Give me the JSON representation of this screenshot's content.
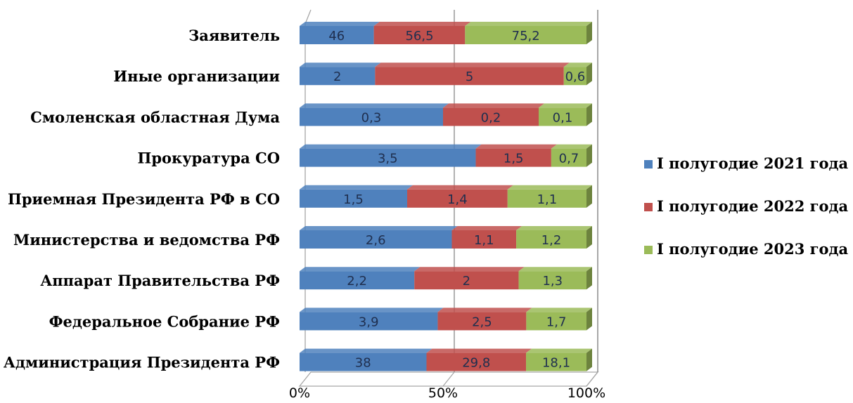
{
  "chart_data": {
    "type": "bar",
    "orientation": "horizontal",
    "stacked": "percent",
    "categories": [
      "Заявитель",
      "Иные организации",
      "Смоленская областная Дума",
      "Прокуратура СО",
      "Приемная Президента РФ в СО",
      "Министерства и ведомства РФ",
      "Аппарат Правительства РФ",
      "Федеральное Собрание РФ",
      "Администрация Президента РФ"
    ],
    "series": [
      {
        "name": "I полугодие 2021 года",
        "color": "#4f81bd",
        "values": [
          "46",
          "2",
          "0,3",
          "3,5",
          "1,5",
          "2,6",
          "2,2",
          "3,9",
          "38"
        ]
      },
      {
        "name": "I полугодие 2022 года",
        "color": "#c0504d",
        "values": [
          "56,5",
          "5",
          "0,2",
          "1,5",
          "1,4",
          "1,1",
          "2",
          "2,5",
          "29,8"
        ]
      },
      {
        "name": "I полугодие 2023 года",
        "color": "#9bbb59",
        "values": [
          "75,2",
          "0,6",
          "0,1",
          "0,7",
          "1,1",
          "1,2",
          "1,3",
          "1,7",
          "18,1"
        ]
      }
    ],
    "x_ticks": [
      "0%",
      "50%",
      "100%"
    ],
    "xlim": [
      0,
      100
    ],
    "grid": true,
    "legend_position": "right"
  }
}
